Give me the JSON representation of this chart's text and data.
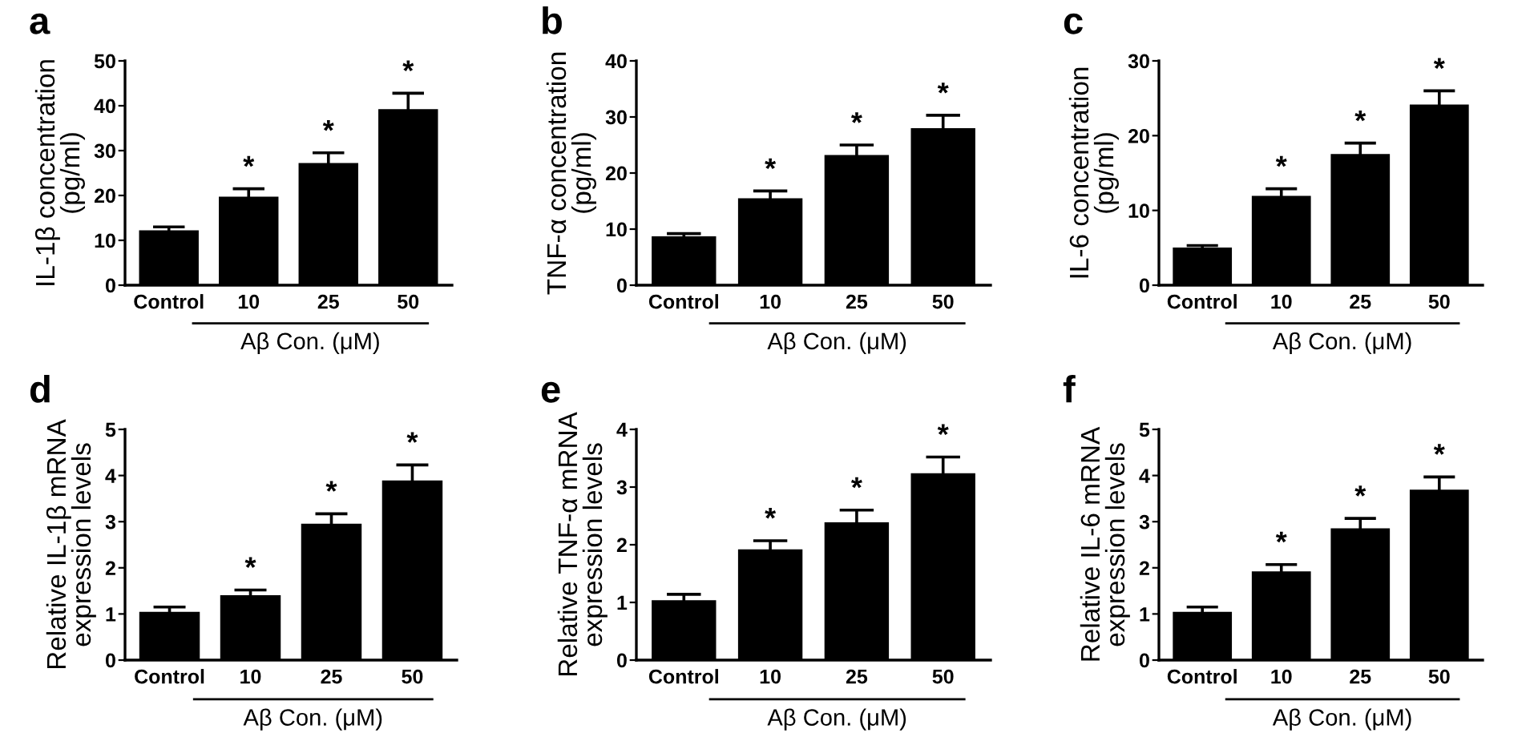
{
  "chart_data": [
    {
      "type": "bar",
      "title": "a",
      "ylabel": "IL-1β concentration\n(pg/ml)",
      "categories": [
        "Control",
        "10",
        "25",
        "50"
      ],
      "values": [
        12,
        19.5,
        27,
        39
      ],
      "errors": [
        [
          12,
          13
        ],
        [
          19.5,
          21.5
        ],
        [
          27,
          29.5
        ],
        [
          39,
          42.8
        ]
      ],
      "color": "#000000",
      "ylim": [
        0,
        50
      ],
      "yticks": [
        0,
        10,
        20,
        30,
        40,
        50
      ],
      "grid": false,
      "annotations": [
        "*",
        "*",
        "*",
        "Aβ Con. (μM)"
      ]
    },
    {
      "type": "bar",
      "title": "b",
      "ylabel": "TNF-α concentration\n(pg/ml)",
      "categories": [
        "Control",
        "10",
        "25",
        "50"
      ],
      "values": [
        8.5,
        15.3,
        23,
        27.8
      ],
      "errors": [
        [
          8.5,
          9.2
        ],
        [
          15.3,
          16.8
        ],
        [
          23,
          25
        ],
        [
          27.8,
          30.3
        ]
      ],
      "color": "#000000",
      "ylim": [
        0,
        40
      ],
      "yticks": [
        0,
        10,
        20,
        30,
        40
      ],
      "grid": false,
      "annotations": [
        "*",
        "*",
        "*",
        "Aβ Con. (μM)"
      ]
    },
    {
      "type": "bar",
      "title": "c",
      "ylabel": "IL-6 concentration\n(pg/ml)",
      "categories": [
        "Control",
        "10",
        "25",
        "50"
      ],
      "values": [
        4.9,
        11.8,
        17.4,
        24
      ],
      "errors": [
        [
          4.9,
          5.3
        ],
        [
          11.8,
          12.9
        ],
        [
          17.4,
          19
        ],
        [
          24,
          26
        ]
      ],
      "color": "#000000",
      "ylim": [
        0,
        30
      ],
      "yticks": [
        0,
        10,
        20,
        30
      ],
      "grid": false,
      "annotations": [
        "*",
        "*",
        "*",
        "Aβ Con. (μM)"
      ]
    },
    {
      "type": "bar",
      "title": "d",
      "ylabel": "Relative IL-1β mRNA\nexpression levels",
      "categories": [
        "Control",
        "10",
        "25",
        "50"
      ],
      "values": [
        1.02,
        1.38,
        2.93,
        3.87
      ],
      "errors": [
        [
          1.02,
          1.15
        ],
        [
          1.38,
          1.52
        ],
        [
          2.93,
          3.17
        ],
        [
          3.87,
          4.23
        ]
      ],
      "color": "#000000",
      "ylim": [
        0,
        5
      ],
      "yticks": [
        0,
        1,
        2,
        3,
        4,
        5
      ],
      "grid": false,
      "annotations": [
        "*",
        "*",
        "*",
        "Aβ Con. (μM)"
      ]
    },
    {
      "type": "bar",
      "title": "e",
      "ylabel": "Relative TNF-α mRNA\nexpression levels",
      "categories": [
        "Control",
        "10",
        "25",
        "50"
      ],
      "values": [
        1.02,
        1.9,
        2.37,
        3.22
      ],
      "errors": [
        [
          1.02,
          1.14
        ],
        [
          1.9,
          2.07
        ],
        [
          2.37,
          2.6
        ],
        [
          3.22,
          3.52
        ]
      ],
      "color": "#000000",
      "ylim": [
        0,
        4
      ],
      "yticks": [
        0,
        1,
        2,
        3,
        4
      ],
      "grid": false,
      "annotations": [
        "*",
        "*",
        "*",
        "Aβ Con. (μM)"
      ]
    },
    {
      "type": "bar",
      "title": "f",
      "ylabel": "Relative IL-6 mRNA\nexpression levels",
      "categories": [
        "Control",
        "10",
        "25",
        "50"
      ],
      "values": [
        1.02,
        1.9,
        2.83,
        3.67
      ],
      "errors": [
        [
          1.02,
          1.15
        ],
        [
          1.9,
          2.07
        ],
        [
          2.83,
          3.07
        ],
        [
          3.67,
          3.97
        ]
      ],
      "color": "#000000",
      "ylim": [
        0,
        5
      ],
      "yticks": [
        0,
        1,
        2,
        3,
        4,
        5
      ],
      "grid": false,
      "annotations": [
        "*",
        "*",
        "*",
        "Aβ Con. (μM)"
      ]
    }
  ]
}
